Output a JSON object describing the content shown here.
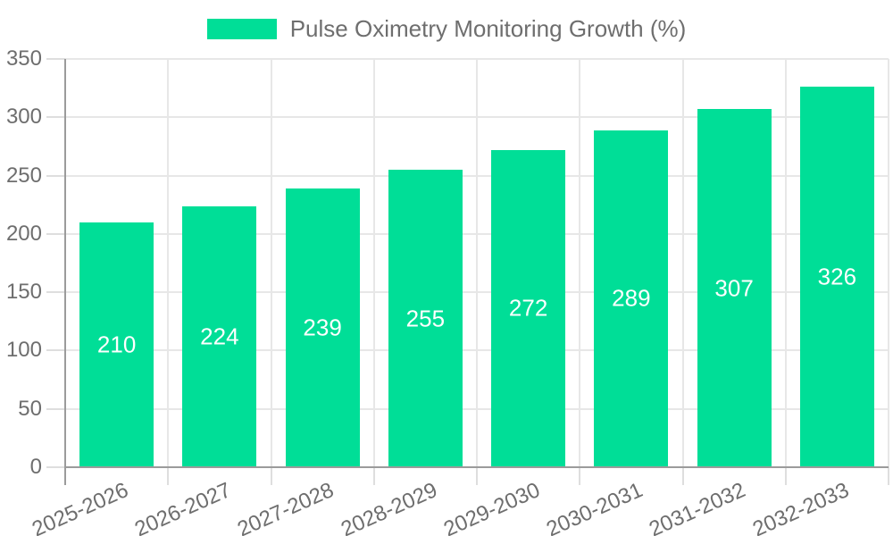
{
  "chart_data": {
    "type": "bar",
    "title": "Pulse Oximetry Monitoring Growth (%)",
    "categories": [
      "2025-2026",
      "2026-2027",
      "2027-2028",
      "2028-2029",
      "2029-2030",
      "2030-2031",
      "2031-2032",
      "2032-2033"
    ],
    "values": [
      210,
      224,
      239,
      255,
      272,
      289,
      307,
      326
    ],
    "series": [
      {
        "name": "Pulse Oximetry Monitoring Growth (%)",
        "values": [
          210,
          224,
          239,
          255,
          272,
          289,
          307,
          326
        ]
      }
    ],
    "bar_color": "#00DE97",
    "value_label_color": "#FFFFFF",
    "xlabel": "",
    "ylabel": "",
    "ylim": [
      0,
      350
    ],
    "y_ticks": [
      0,
      50,
      100,
      150,
      200,
      250,
      300,
      350
    ],
    "grid": true,
    "legend_position": "top",
    "x_tick_rotation_deg": -24
  }
}
